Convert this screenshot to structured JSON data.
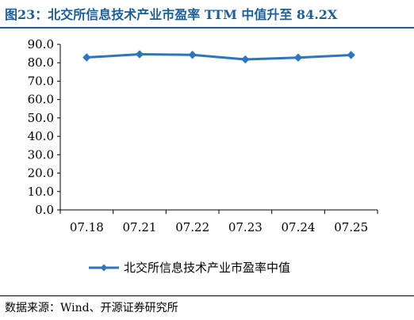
{
  "header": {
    "title": "图23：北交所信息技术产业市盈率 TTM 中值升至 84.2X"
  },
  "footer": {
    "source": "数据来源：Wind、开源证券研究所"
  },
  "colors": {
    "accent": "#1a5e9a",
    "series": "#2e75c0",
    "axis": "#000000"
  },
  "chart_data": {
    "type": "line",
    "title": "图23：北交所信息技术产业市盈率 TTM 中值升至 84.2X",
    "xlabel": "",
    "ylabel": "",
    "categories": [
      "07.18",
      "07.21",
      "07.22",
      "07.23",
      "07.24",
      "07.25"
    ],
    "series": [
      {
        "name": "北交所信息技术产业市盈率中值",
        "values": [
          82.9,
          84.6,
          84.3,
          81.8,
          82.8,
          84.2
        ]
      }
    ],
    "ylim": [
      0,
      90
    ],
    "yticks": [
      "0.0",
      "10.0",
      "20.0",
      "30.0",
      "40.0",
      "50.0",
      "60.0",
      "70.0",
      "80.0",
      "90.0"
    ],
    "grid": false,
    "legend_position": "bottom",
    "marker": "diamond"
  }
}
